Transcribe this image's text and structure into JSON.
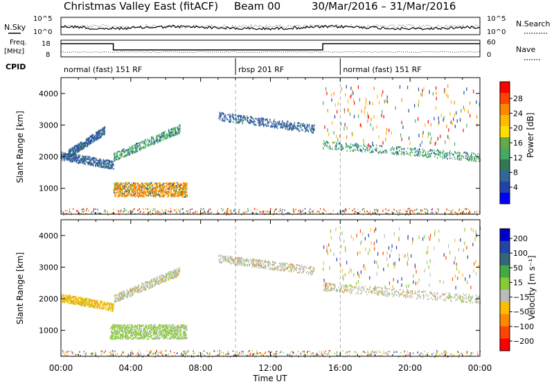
{
  "header": {
    "title": "Christmas Valley East (fitACF)",
    "beam": "Beam 00",
    "date_range": "30/Mar/2016 – 31/Mar/2016"
  },
  "noise_panel": {
    "left_label": "N.Sky",
    "right_label": "N.Search",
    "y_ticks_left": [
      "10^5",
      "10^0"
    ],
    "y_ticks_right": [
      "10^5",
      "10^0"
    ]
  },
  "freq_panel": {
    "left_label_line1": "Freq.",
    "left_label_line2": "[MHz]",
    "right_label": "Nave",
    "y_ticks_left": [
      "18",
      "8"
    ],
    "y_ticks_right": [
      "60",
      "0"
    ],
    "freq_segments": [
      {
        "start_h": 0,
        "end_h": 3,
        "value": "high"
      },
      {
        "start_h": 3,
        "end_h": 15,
        "value": "low"
      },
      {
        "start_h": 15,
        "end_h": 24,
        "value": "high"
      }
    ]
  },
  "cpid_panel": {
    "label": "CPID",
    "segments": [
      {
        "start_h": 0,
        "end_h": 10,
        "text": "normal (fast) 151 RF"
      },
      {
        "start_h": 10,
        "end_h": 16,
        "text": "rbsp 201 RF"
      },
      {
        "start_h": 16,
        "end_h": 24,
        "text": "normal (fast) 151 RF"
      }
    ]
  },
  "power_colorbar": {
    "label": "Power [dB]",
    "ticks": [
      "28",
      "24",
      "20",
      "16",
      "12",
      "8",
      "4"
    ],
    "colors": [
      "#ff0000",
      "#ff4400",
      "#ff8800",
      "#ffbb00",
      "#ffdd00",
      "#66aa44",
      "#44aa66",
      "#337755",
      "#336699",
      "#2244aa",
      "#0000ff"
    ]
  },
  "velocity_colorbar": {
    "label": "Velocity [m s⁻¹]",
    "ticks": [
      "200",
      "100",
      "50",
      "15",
      "−15",
      "−50",
      "−100",
      "−200"
    ],
    "colors": [
      "#0000cc",
      "#2244aa",
      "#336677",
      "#44aa44",
      "#88cc33",
      "#bbbbbb",
      "#ffbb00",
      "#ff8800",
      "#ff4400",
      "#ff0000"
    ]
  },
  "chart_data": {
    "type": "heatmap",
    "xlabel": "Time UT",
    "ylabel": "Slant Range [km]",
    "x_ticks": [
      "00:00",
      "04:00",
      "08:00",
      "12:00",
      "16:00",
      "20:00",
      "00:00"
    ],
    "x_range_h": [
      0,
      24
    ],
    "y_ticks": [
      "1000",
      "2000",
      "3000",
      "4000"
    ],
    "y_range_km": [
      180,
      4500
    ],
    "dashed_markers_h": [
      10,
      16
    ],
    "power_features": [
      {
        "kind": "blob",
        "t0": 3,
        "t1": 7.2,
        "r0": 750,
        "r1": 1200,
        "color": "#ff8800"
      },
      {
        "kind": "arc",
        "t0": 0,
        "t1": 3,
        "r_start": 2050,
        "r_end": 1750,
        "color": "#336699"
      },
      {
        "kind": "arc",
        "t0": 3,
        "t1": 6.8,
        "r_start": 2000,
        "r_end": 2900,
        "color": "#44aa66"
      },
      {
        "kind": "arc",
        "t0": 0.4,
        "t1": 2.5,
        "r_start": 2100,
        "r_end": 2850,
        "color": "#336699"
      },
      {
        "kind": "arc",
        "t0": 9,
        "t1": 14.5,
        "r_start": 3300,
        "r_end": 2900,
        "color": "#336699"
      },
      {
        "kind": "arc",
        "t0": 15,
        "t1": 24,
        "r_start": 2400,
        "r_end": 2000,
        "color": "#44aa66"
      }
    ],
    "velocity_features": [
      {
        "kind": "blob",
        "t0": 2.8,
        "t1": 7.2,
        "r0": 750,
        "r1": 1200,
        "color": "#88cc33"
      },
      {
        "kind": "arc",
        "t0": 0,
        "t1": 3,
        "r_start": 2050,
        "r_end": 1750,
        "color": "#ffbb00"
      },
      {
        "kind": "arc",
        "t0": 3,
        "t1": 6.8,
        "r_start": 2000,
        "r_end": 2900,
        "color": "#bbbbbb"
      },
      {
        "kind": "arc",
        "t0": 9,
        "t1": 14.5,
        "r_start": 3300,
        "r_end": 2900,
        "color": "#bbbbbb"
      },
      {
        "kind": "arc",
        "t0": 15,
        "t1": 24,
        "r_start": 2400,
        "r_end": 2000,
        "color": "#bbbbbb"
      }
    ]
  }
}
